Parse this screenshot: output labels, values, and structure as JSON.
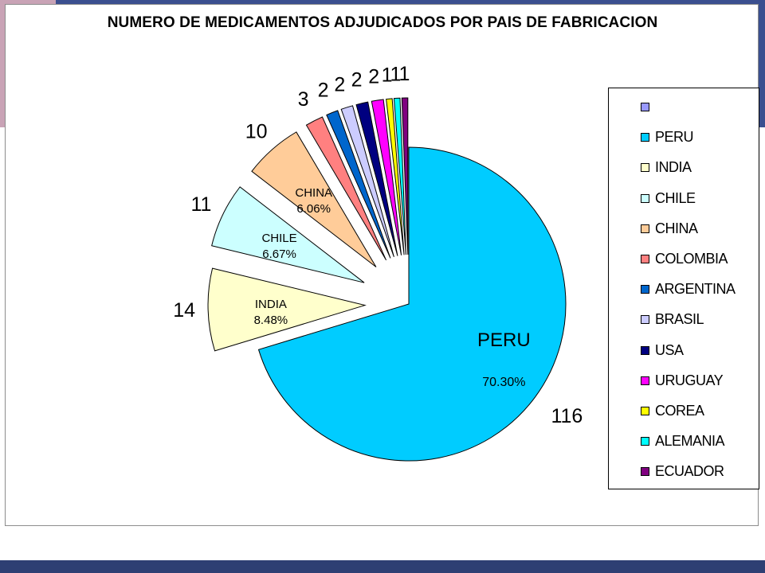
{
  "chart_data": {
    "type": "pie",
    "title": "NUMERO DE MEDICAMENTOS ADJUDICADOS POR PAIS DE FABRICACION",
    "slices": [
      {
        "label": "PERU",
        "value": 116,
        "percent": "70.30%",
        "color": "#00ccff"
      },
      {
        "label": "INDIA",
        "value": 14,
        "percent": "8.48%",
        "color": "#ffffcc"
      },
      {
        "label": "CHILE",
        "value": 11,
        "percent": "6.67%",
        "color": "#ccffff"
      },
      {
        "label": "CHINA",
        "value": 10,
        "percent": "6.06%",
        "color": "#ffcc99"
      },
      {
        "label": "COLOMBIA",
        "value": 3,
        "percent": "",
        "color": "#ff8080"
      },
      {
        "label": "ARGENTINA",
        "value": 2,
        "percent": "",
        "color": "#0066cc"
      },
      {
        "label": "BRASIL",
        "value": 2,
        "percent": "",
        "color": "#ccccff"
      },
      {
        "label": "USA",
        "value": 2,
        "percent": "",
        "color": "#000080"
      },
      {
        "label": "URUGUAY",
        "value": 2,
        "percent": "",
        "color": "#ff00ff"
      },
      {
        "label": "COREA",
        "value": 1,
        "percent": "",
        "color": "#ffff00"
      },
      {
        "label": "ALEMANIA",
        "value": 1,
        "percent": "",
        "color": "#00ffff"
      },
      {
        "label": "ECUADOR",
        "value": 1,
        "percent": "",
        "color": "#800080"
      }
    ],
    "legend": {
      "placement": "right",
      "entries": [
        {
          "label": "",
          "color": "#9999ff"
        },
        {
          "label": "PERU",
          "color": "#00ccff"
        },
        {
          "label": "INDIA",
          "color": "#ffffcc"
        },
        {
          "label": "CHILE",
          "color": "#ccffff"
        },
        {
          "label": "CHINA",
          "color": "#ffcc99"
        },
        {
          "label": "COLOMBIA",
          "color": "#ff8080"
        },
        {
          "label": "ARGENTINA",
          "color": "#0066cc"
        },
        {
          "label": "BRASIL",
          "color": "#ccccff"
        },
        {
          "label": "USA",
          "color": "#000080"
        },
        {
          "label": "URUGUAY",
          "color": "#ff00ff"
        },
        {
          "label": "COREA",
          "color": "#ffff00"
        },
        {
          "label": "ALEMANIA",
          "color": "#00ffff"
        },
        {
          "label": "ECUADOR",
          "color": "#800080"
        }
      ]
    }
  }
}
